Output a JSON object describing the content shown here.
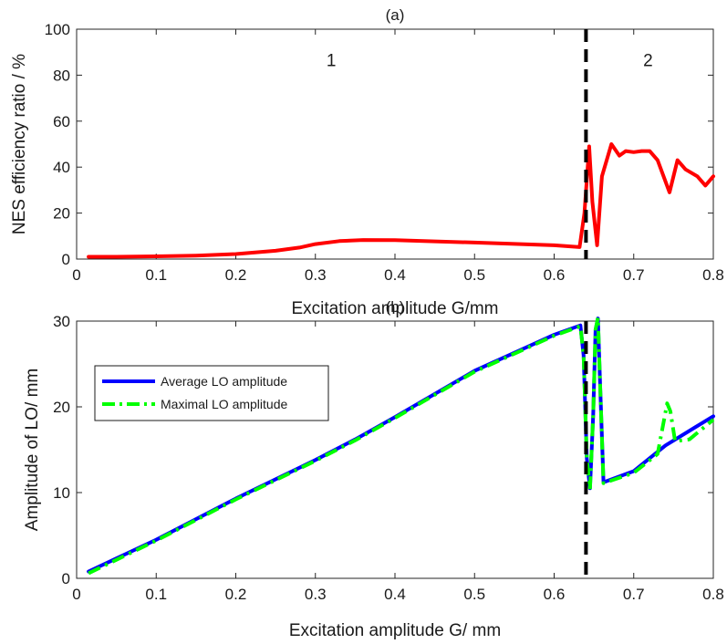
{
  "chart_data": [
    {
      "type": "line",
      "title": "(a)",
      "xlabel": "Excitation amplitude G/mm",
      "ylabel": "NES efficiency ratio / %",
      "xlim": [
        0,
        0.8
      ],
      "ylim": [
        0,
        100
      ],
      "xticks": [
        0,
        0.1,
        0.2,
        0.3,
        0.4,
        0.5,
        0.6,
        0.7,
        0.8
      ],
      "xtick_labels": [
        "0",
        "0.1",
        "0.2",
        "0.3",
        "0.4",
        "0.5",
        "0.6",
        "0.7",
        "0.8"
      ],
      "yticks": [
        0,
        20,
        40,
        60,
        80,
        100
      ],
      "ytick_labels": [
        "0",
        "20",
        "40",
        "60",
        "80",
        "100"
      ],
      "grid": false,
      "vline": 0.64,
      "region_labels": [
        {
          "text": "1",
          "x": 0.32,
          "y": 84
        },
        {
          "text": "2",
          "x": 0.718,
          "y": 84
        }
      ],
      "series": [
        {
          "color": "#ff0000",
          "x": [
            0.015,
            0.05,
            0.1,
            0.15,
            0.2,
            0.25,
            0.28,
            0.3,
            0.33,
            0.36,
            0.4,
            0.45,
            0.5,
            0.55,
            0.6,
            0.632,
            0.638,
            0.644,
            0.648,
            0.654,
            0.66,
            0.672,
            0.682,
            0.69,
            0.7,
            0.71,
            0.72,
            0.73,
            0.745,
            0.755,
            0.765,
            0.78,
            0.79,
            0.8
          ],
          "y": [
            1,
            1,
            1.2,
            1.5,
            2.2,
            3.6,
            5,
            6.5,
            7.8,
            8.3,
            8.2,
            7.7,
            7.2,
            6.6,
            6,
            5.2,
            20,
            49,
            25,
            6,
            36,
            50,
            45,
            47,
            46.5,
            47,
            47,
            43,
            29,
            43,
            39,
            36,
            32,
            36
          ]
        }
      ]
    },
    {
      "type": "line",
      "title": "(b)",
      "xlabel": "Excitation amplitude G/ mm",
      "ylabel": "Amplitude of LO/ mm",
      "xlim": [
        0,
        0.8
      ],
      "ylim": [
        0,
        30
      ],
      "xticks": [
        0,
        0.1,
        0.2,
        0.3,
        0.4,
        0.5,
        0.6,
        0.7,
        0.8
      ],
      "xtick_labels": [
        "0",
        "0.1",
        "0.2",
        "0.3",
        "0.4",
        "0.5",
        "0.6",
        "0.7",
        "0.8"
      ],
      "yticks": [
        0,
        10,
        20,
        30
      ],
      "ytick_labels": [
        "0",
        "10",
        "20",
        "30"
      ],
      "grid": false,
      "vline": 0.64,
      "legend": "top-left",
      "series": [
        {
          "name": "Average LO amplitude",
          "color": "#0000ff",
          "style": "solid",
          "x": [
            0.015,
            0.1,
            0.2,
            0.3,
            0.35,
            0.4,
            0.5,
            0.6,
            0.633,
            0.637,
            0.641,
            0.645,
            0.649,
            0.652,
            0.655,
            0.658,
            0.662,
            0.7,
            0.74,
            0.8
          ],
          "y": [
            0.8,
            4.5,
            9.3,
            13.8,
            16.2,
            18.8,
            24.2,
            28.4,
            29.5,
            26,
            14,
            10.5,
            19,
            29,
            30.3,
            22,
            11.2,
            12.5,
            15.5,
            18.9
          ]
        },
        {
          "name": "Maximal LO amplitude",
          "color": "#00ff00",
          "style": "dashdot",
          "x": [
            0.015,
            0.1,
            0.2,
            0.3,
            0.35,
            0.4,
            0.5,
            0.6,
            0.633,
            0.637,
            0.641,
            0.645,
            0.649,
            0.652,
            0.655,
            0.658,
            0.662,
            0.7,
            0.73,
            0.742,
            0.746,
            0.752,
            0.77,
            0.8
          ],
          "y": [
            0.6,
            4.4,
            9.2,
            13.7,
            16.1,
            18.7,
            24.1,
            28.3,
            29.4,
            26,
            14,
            10.4,
            19,
            29,
            30.4,
            22,
            11.1,
            12.3,
            14.5,
            20.4,
            19.5,
            16,
            16.2,
            18.5
          ]
        }
      ]
    }
  ]
}
